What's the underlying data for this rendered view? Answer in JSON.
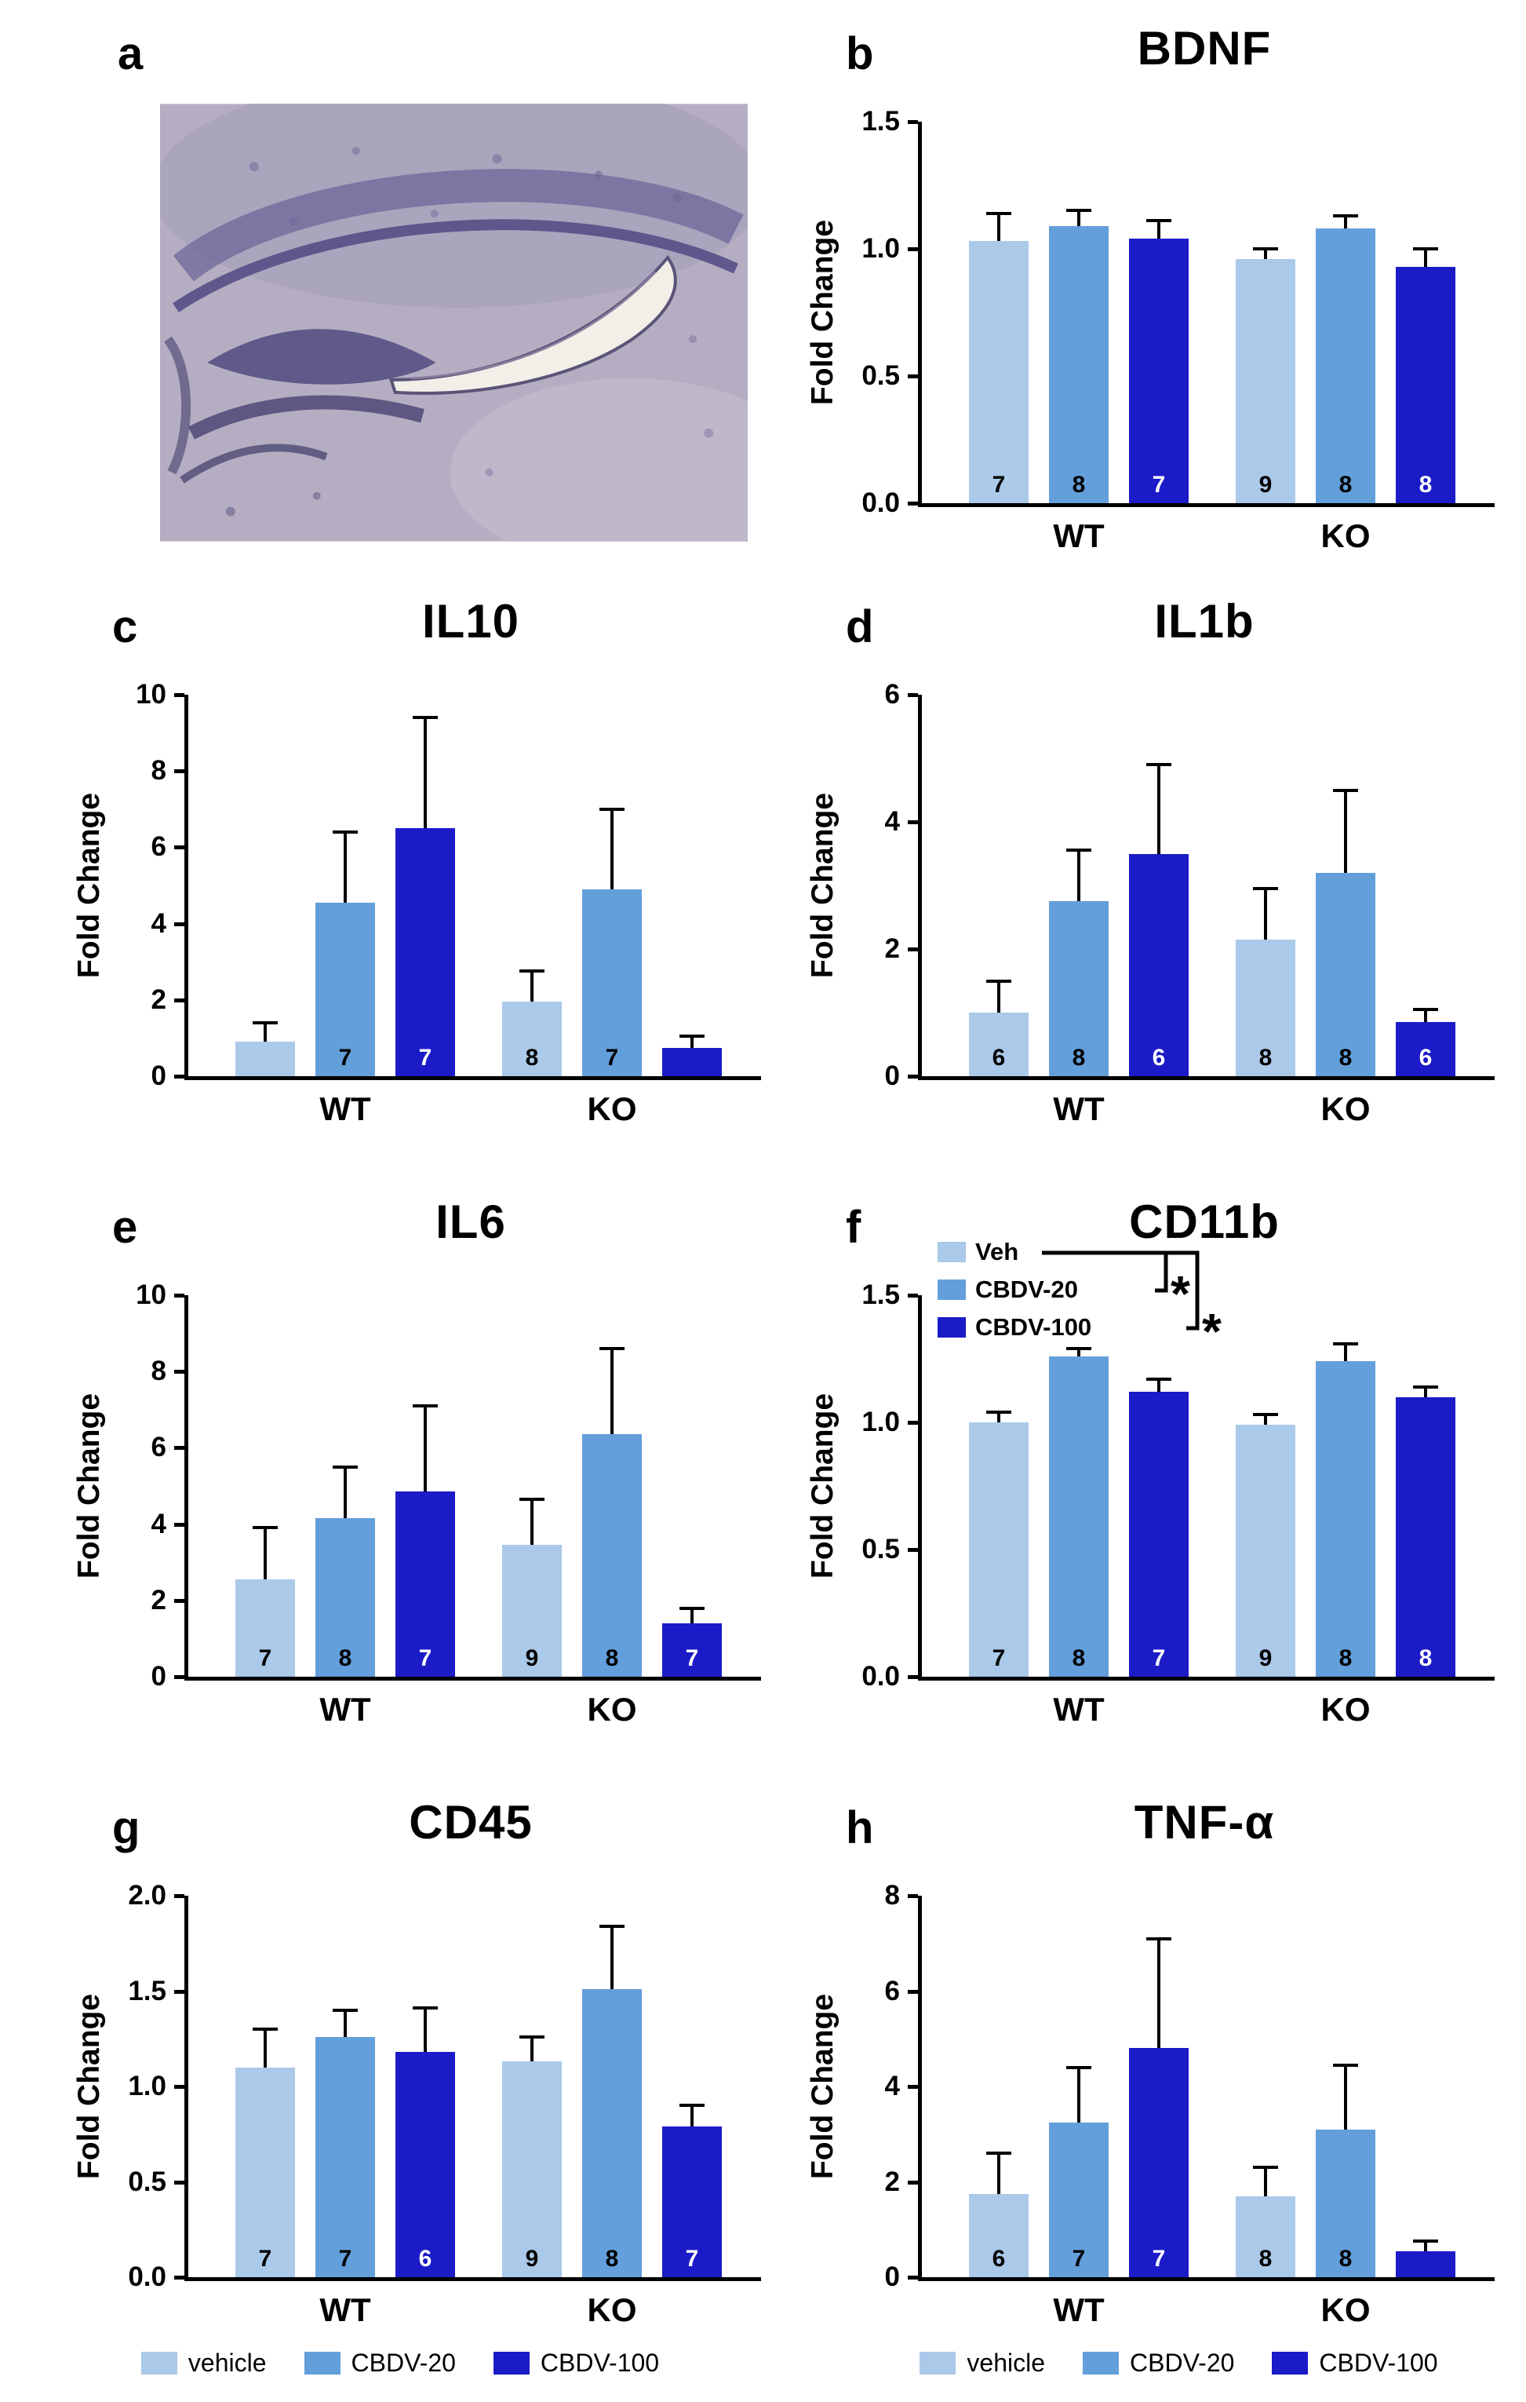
{
  "panel_a": {
    "letter": "a",
    "description": "hippocampus-histology-image"
  },
  "colors": {
    "vehicle": "#abc9e9",
    "cbdv20": "#639fdb",
    "cbdv100": "#1b1bc8",
    "axis": "#000000"
  },
  "bottom_legend": {
    "items": [
      {
        "label": "vehicle",
        "color": "#abc9e9"
      },
      {
        "label": "CBDV-20",
        "color": "#639fdb"
      },
      {
        "label": "CBDV-100",
        "color": "#1b1bc8"
      }
    ]
  },
  "inset_legend": {
    "items": [
      {
        "label": "Veh",
        "color": "#abc9e9"
      },
      {
        "label": "CBDV-20",
        "color": "#639fdb"
      },
      {
        "label": "CBDV-100",
        "color": "#1b1bc8"
      }
    ],
    "sig": [
      "*",
      "*"
    ]
  },
  "chart_data": [
    {
      "panel": "b",
      "letter": "b",
      "type": "bar",
      "title": "BDNF",
      "ylabel": "Fold Change",
      "groups": [
        "WT",
        "KO"
      ],
      "series": [
        "vehicle",
        "CBDV-20",
        "CBDV-100"
      ],
      "ylim": [
        0,
        1.5
      ],
      "ytick_values": [
        0,
        0.5,
        1,
        1.5
      ],
      "ytick_labels": [
        "0.0",
        "0.5",
        "1.0",
        "1.5"
      ],
      "values": [
        1.03,
        1.09,
        1.04,
        0.96,
        1.08,
        0.93
      ],
      "errors": [
        0.11,
        0.06,
        0.07,
        0.04,
        0.05,
        0.07
      ],
      "n": [
        "7",
        "8",
        "7",
        "9",
        "8",
        "8"
      ]
    },
    {
      "panel": "c",
      "letter": "c",
      "type": "bar",
      "title": "IL10",
      "ylabel": "Fold Change",
      "groups": [
        "WT",
        "KO"
      ],
      "series": [
        "vehicle",
        "CBDV-20",
        "CBDV-100"
      ],
      "ylim": [
        0,
        10
      ],
      "ytick_values": [
        0,
        2,
        4,
        6,
        8,
        10
      ],
      "ytick_labels": [
        "0",
        "2",
        "4",
        "6",
        "8",
        "10"
      ],
      "values": [
        0.9,
        4.55,
        6.5,
        1.95,
        4.9,
        0.75
      ],
      "errors": [
        0.5,
        1.85,
        2.9,
        0.8,
        2.1,
        0.3
      ],
      "n": [
        "",
        "7",
        "7",
        "8",
        "7",
        ""
      ]
    },
    {
      "panel": "d",
      "letter": "d",
      "type": "bar",
      "title": "IL1b",
      "ylabel": "Fold Change",
      "groups": [
        "WT",
        "KO"
      ],
      "series": [
        "vehicle",
        "CBDV-20",
        "CBDV-100"
      ],
      "ylim": [
        0,
        6
      ],
      "ytick_values": [
        0,
        2,
        4,
        6
      ],
      "ytick_labels": [
        "0",
        "2",
        "4",
        "6"
      ],
      "values": [
        1.0,
        2.75,
        3.5,
        2.15,
        3.2,
        0.85
      ],
      "errors": [
        0.5,
        0.8,
        1.4,
        0.8,
        1.3,
        0.2
      ],
      "n": [
        "6",
        "8",
        "6",
        "8",
        "8",
        "6"
      ]
    },
    {
      "panel": "e",
      "letter": "e",
      "type": "bar",
      "title": "IL6",
      "ylabel": "Fold Change",
      "groups": [
        "WT",
        "KO"
      ],
      "series": [
        "vehicle",
        "CBDV-20",
        "CBDV-100"
      ],
      "ylim": [
        0,
        10
      ],
      "ytick_values": [
        0,
        2,
        4,
        6,
        8,
        10
      ],
      "ytick_labels": [
        "0",
        "2",
        "4",
        "6",
        "8",
        "10"
      ],
      "values": [
        2.55,
        4.15,
        4.85,
        3.45,
        6.35,
        1.4
      ],
      "errors": [
        1.35,
        1.35,
        2.25,
        1.2,
        2.25,
        0.4
      ],
      "n": [
        "7",
        "8",
        "7",
        "9",
        "8",
        "7"
      ]
    },
    {
      "panel": "f",
      "letter": "f",
      "type": "bar",
      "title": "CD11b",
      "ylabel": "Fold Change",
      "groups": [
        "WT",
        "KO"
      ],
      "series": [
        "vehicle",
        "CBDV-20",
        "CBDV-100"
      ],
      "ylim": [
        0,
        1.5
      ],
      "ytick_values": [
        0,
        0.5,
        1,
        1.5
      ],
      "ytick_labels": [
        "0.0",
        "0.5",
        "1.0",
        "1.5"
      ],
      "values": [
        1.0,
        1.26,
        1.12,
        0.99,
        1.24,
        1.1
      ],
      "errors": [
        0.04,
        0.03,
        0.05,
        0.04,
        0.07,
        0.04
      ],
      "n": [
        "7",
        "8",
        "7",
        "9",
        "8",
        "8"
      ]
    },
    {
      "panel": "g",
      "letter": "g",
      "type": "bar",
      "title": "CD45",
      "ylabel": "Fold Change",
      "groups": [
        "WT",
        "KO"
      ],
      "series": [
        "vehicle",
        "CBDV-20",
        "CBDV-100"
      ],
      "ylim": [
        0,
        2
      ],
      "ytick_values": [
        0,
        0.5,
        1,
        1.5,
        2
      ],
      "ytick_labels": [
        "0.0",
        "0.5",
        "1.0",
        "1.5",
        "2.0"
      ],
      "values": [
        1.1,
        1.26,
        1.18,
        1.13,
        1.51,
        0.79
      ],
      "errors": [
        0.2,
        0.14,
        0.23,
        0.13,
        0.33,
        0.11
      ],
      "n": [
        "7",
        "7",
        "6",
        "9",
        "8",
        "7"
      ]
    },
    {
      "panel": "h",
      "letter": "h",
      "type": "bar",
      "title": "TNF-α",
      "ylabel": "Fold Change",
      "groups": [
        "WT",
        "KO"
      ],
      "series": [
        "vehicle",
        "CBDV-20",
        "CBDV-100"
      ],
      "ylim": [
        0,
        8
      ],
      "ytick_values": [
        0,
        2,
        4,
        6,
        8
      ],
      "ytick_labels": [
        "0",
        "2",
        "4",
        "6",
        "8"
      ],
      "values": [
        1.75,
        3.25,
        4.8,
        1.7,
        3.1,
        0.55
      ],
      "errors": [
        0.85,
        1.15,
        2.3,
        0.6,
        1.35,
        0.2
      ],
      "n": [
        "6",
        "7",
        "7",
        "8",
        "8",
        ""
      ]
    }
  ]
}
